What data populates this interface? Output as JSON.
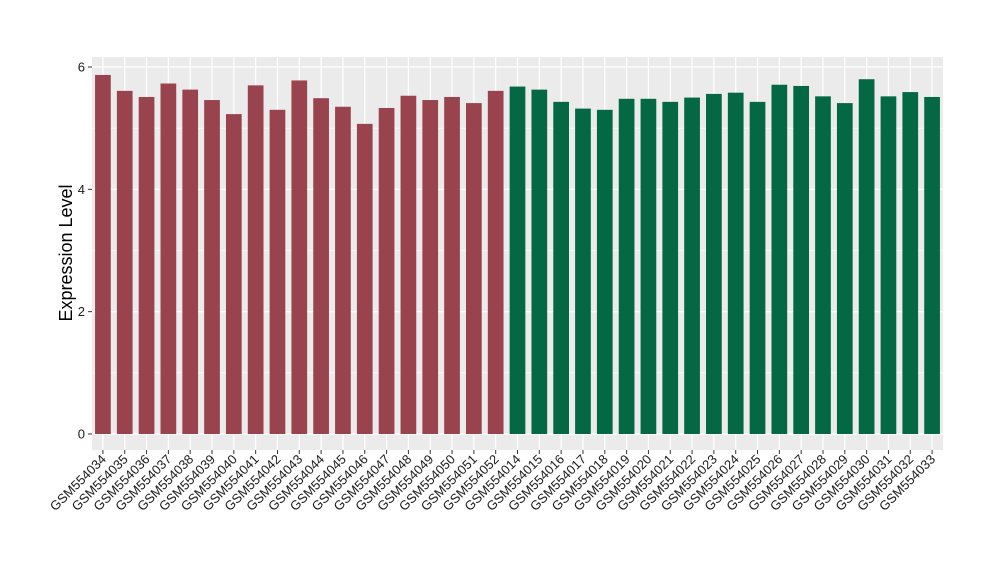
{
  "chart_data": {
    "type": "bar",
    "title": "",
    "xlabel": "",
    "ylabel": "Expression Level",
    "ylim": [
      0,
      6
    ],
    "yticks": [
      0,
      2,
      4,
      6
    ],
    "grid": true,
    "legend": "none",
    "panel_background": "#ebebeb",
    "grid_color": "#ffffff",
    "categories": [
      "GSM554034",
      "GSM554035",
      "GSM554036",
      "GSM554037",
      "GSM554038",
      "GSM554039",
      "GSM554040",
      "GSM554041",
      "GSM554042",
      "GSM554043",
      "GSM554044",
      "GSM554045",
      "GSM554046",
      "GSM554047",
      "GSM554048",
      "GSM554049",
      "GSM554050",
      "GSM554051",
      "GSM554052",
      "GSM554014",
      "GSM554015",
      "GSM554016",
      "GSM554017",
      "GSM554018",
      "GSM554019",
      "GSM554020",
      "GSM554021",
      "GSM554022",
      "GSM554023",
      "GSM554024",
      "GSM554025",
      "GSM554026",
      "GSM554027",
      "GSM554028",
      "GSM554029",
      "GSM554030",
      "GSM554031",
      "GSM554032",
      "GSM554033"
    ],
    "values": [
      5.87,
      5.61,
      5.51,
      5.73,
      5.63,
      5.46,
      5.23,
      5.7,
      5.3,
      5.78,
      5.49,
      5.35,
      5.07,
      5.33,
      5.53,
      5.46,
      5.51,
      5.41,
      5.61,
      5.68,
      5.63,
      5.43,
      5.32,
      5.3,
      5.48,
      5.48,
      5.43,
      5.5,
      5.56,
      5.58,
      5.43,
      5.71,
      5.69,
      5.52,
      5.41,
      5.8,
      5.52,
      5.59,
      5.51
    ],
    "bar_colors": [
      "#99434f",
      "#99434f",
      "#99434f",
      "#99434f",
      "#99434f",
      "#99434f",
      "#99434f",
      "#99434f",
      "#99434f",
      "#99434f",
      "#99434f",
      "#99434f",
      "#99434f",
      "#99434f",
      "#99434f",
      "#99434f",
      "#99434f",
      "#99434f",
      "#99434f",
      "#036843",
      "#036843",
      "#036843",
      "#036843",
      "#036843",
      "#036843",
      "#036843",
      "#036843",
      "#036843",
      "#036843",
      "#036843",
      "#036843",
      "#036843",
      "#036843",
      "#036843",
      "#036843",
      "#036843",
      "#036843",
      "#036843",
      "#036843"
    ]
  }
}
